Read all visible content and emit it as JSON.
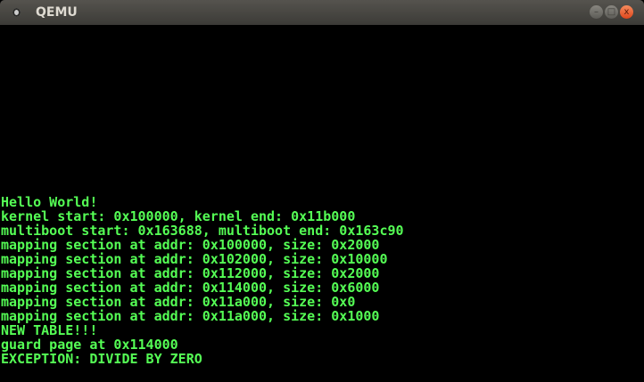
{
  "window": {
    "title": "QEMU",
    "buttons": {
      "minimize": "–",
      "maximize": "□",
      "close": "x"
    }
  },
  "console": {
    "text_color": "#55ff55",
    "lines": [
      "Hello World!",
      "kernel start: 0x100000, kernel end: 0x11b000",
      "multiboot start: 0x163688, multiboot end: 0x163c90",
      "mapping section at addr: 0x100000, size: 0x2000",
      "mapping section at addr: 0x102000, size: 0x10000",
      "mapping section at addr: 0x112000, size: 0x2000",
      "mapping section at addr: 0x114000, size: 0x6000",
      "mapping section at addr: 0x11a000, size: 0x0",
      "mapping section at addr: 0x11a000, size: 0x1000",
      "NEW TABLE!!!",
      "guard page at 0x114000",
      "EXCEPTION: DIVIDE BY ZERO"
    ]
  }
}
